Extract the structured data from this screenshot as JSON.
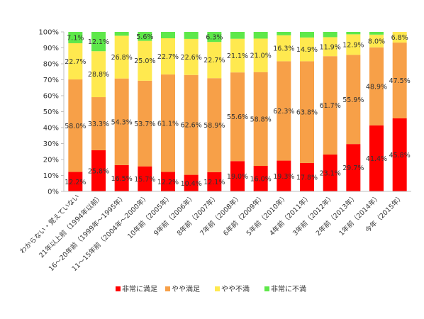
{
  "chart_data": {
    "type": "bar",
    "stacked": true,
    "categories": [
      "わからない・覚えていない",
      "21年以上前（1994年以前）",
      "16～20年前（1999年～1995年）",
      "11～15年前（2004年～2000年）",
      "10年前（2005年）",
      "9年前（2006年）",
      "8年前（2007年）",
      "7年前（2008年）",
      "6年前（2009年）",
      "5年前（2010年）",
      "4年前（2011年）",
      "3年前（2012年）",
      "2年前（2013年）",
      "1年前（2014年）",
      "今年（2015年）"
    ],
    "series": [
      {
        "name": "非常に満足",
        "color": "#ff0000",
        "values": [
          12.2,
          25.8,
          16.5,
          15.7,
          12.2,
          10.4,
          12.1,
          19.0,
          16.0,
          19.3,
          17.8,
          23.1,
          29.7,
          41.4,
          45.8
        ],
        "labels": [
          "12.2%",
          "25.8%",
          "16.5%",
          "15.7%",
          "12.2%",
          "10.4%",
          "12.1%",
          "19.0%",
          "16.0%",
          "19.3%",
          "17.8%",
          "23.1%",
          "29.7%",
          "41.4%",
          "45.8%"
        ]
      },
      {
        "name": "やや満足",
        "color": "#f7a048",
        "values": [
          58.0,
          33.3,
          54.3,
          53.7,
          61.1,
          62.6,
          58.9,
          55.6,
          58.8,
          62.3,
          63.8,
          61.7,
          55.9,
          48.9,
          47.5
        ],
        "labels": [
          "58.0%",
          "33.3%",
          "54.3%",
          "53.7%",
          "61.1%",
          "62.6%",
          "58.9%",
          "55.6%",
          "58.8%",
          "62.3%",
          "63.8%",
          "61.7%",
          "55.9%",
          "48.9%",
          "47.5%"
        ]
      },
      {
        "name": "やや不満",
        "color": "#ffe94f",
        "values": [
          22.7,
          28.8,
          26.8,
          25.0,
          22.7,
          22.6,
          22.7,
          21.1,
          21.0,
          16.3,
          14.9,
          11.9,
          12.9,
          8.0,
          6.8
        ],
        "labels": [
          "22.7%",
          "28.8%",
          "26.8%",
          "25.0%",
          "22.7%",
          "22.6%",
          "22.7%",
          "21.1%",
          "21.0%",
          "16.3%",
          "14.9%",
          "11.9%",
          "12.9%",
          "8.0%",
          "6.8%"
        ]
      },
      {
        "name": "非常に不満",
        "color": "#5ee84a",
        "values": [
          7.1,
          12.1,
          2.4,
          5.6,
          4.0,
          4.4,
          6.3,
          4.3,
          4.2,
          2.1,
          3.5,
          3.3,
          1.5,
          1.7,
          0.0
        ],
        "labels": [
          "7.1%",
          "12.1%",
          "",
          "5.6%",
          "",
          "",
          "6.3%",
          "",
          "",
          "",
          "",
          "",
          "",
          "",
          ""
        ]
      }
    ],
    "yaxis": {
      "min": 0,
      "max": 100,
      "ticks": [
        "0%",
        "10%",
        "20%",
        "30%",
        "40%",
        "50%",
        "60%",
        "70%",
        "80%",
        "90%",
        "100%"
      ]
    },
    "grid": false,
    "legend_position": "bottom"
  }
}
